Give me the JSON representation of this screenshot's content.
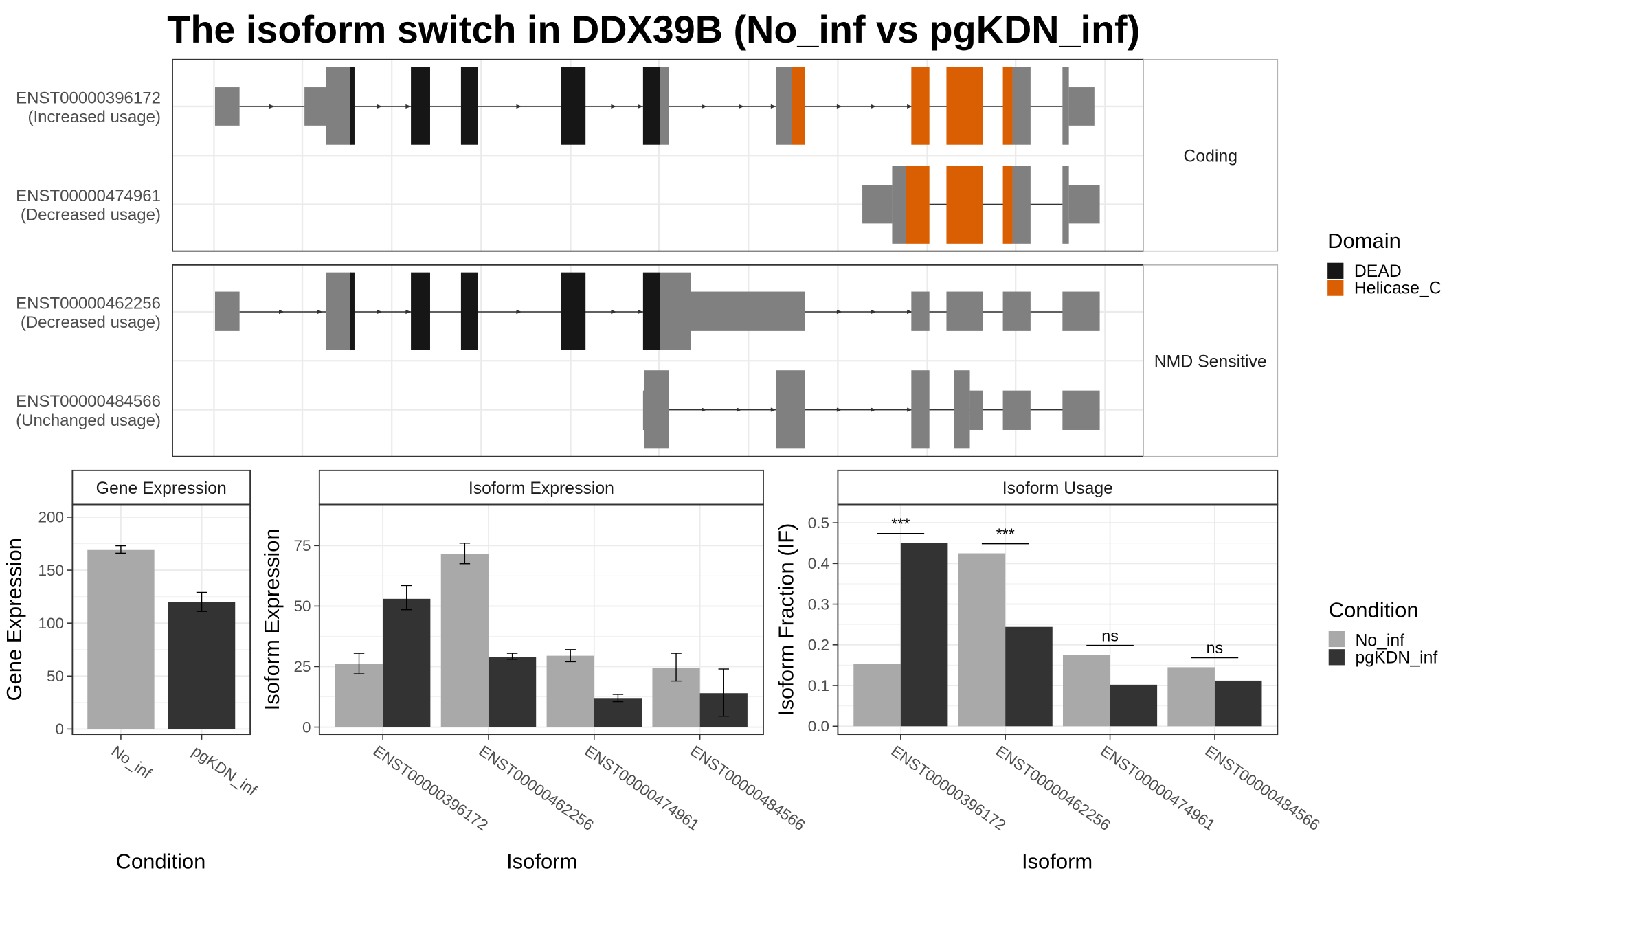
{
  "title": "The isoform switch in DDX39B (No_inf vs pgKDN_inf)",
  "colors": {
    "no_inf": "#a9a9a9",
    "pgkdn_inf": "#333333",
    "dead": "#161616",
    "helicase_c": "#d95f02",
    "exon": "#808080",
    "grid": "#ebebeb",
    "panel_border": "#333333",
    "strip_bg": "#ffffff"
  },
  "structure_panel": {
    "facets": [
      {
        "label": "Coding",
        "transcripts": [
          {
            "id": "ENST00000396172",
            "usage": "(Increased usage)"
          },
          {
            "id": "ENST00000474961",
            "usage": "(Decreased usage)"
          }
        ]
      },
      {
        "label": "NMD Sensitive",
        "transcripts": [
          {
            "id": "ENST00000462256",
            "usage": "(Decreased usage)"
          },
          {
            "id": "ENST00000484566",
            "usage": "(Unchanged usage)"
          }
        ]
      }
    ],
    "legend": {
      "title": "Domain",
      "items": [
        {
          "name": "DEAD",
          "color": "#161616"
        },
        {
          "name": "Helicase_C",
          "color": "#d95f02"
        }
      ]
    }
  },
  "condition_legend": {
    "title": "Condition",
    "items": [
      {
        "name": "No_inf",
        "color": "#a9a9a9"
      },
      {
        "name": "pgKDN_inf",
        "color": "#333333"
      }
    ]
  },
  "chart_data": [
    {
      "type": "bar",
      "title": "Gene Expression",
      "xlabel": "Condition",
      "ylabel": "Gene Expression",
      "categories": [
        "No_inf",
        "pgKDN_inf"
      ],
      "values": [
        169,
        120
      ],
      "error_low": [
        166,
        111
      ],
      "error_high": [
        173,
        129
      ],
      "ylim": [
        -5,
        212
      ],
      "yticks": [
        0,
        50,
        100,
        150,
        200
      ]
    },
    {
      "type": "bar",
      "title": "Isoform Expression",
      "xlabel": "Isoform",
      "ylabel": "Isoform Expression",
      "categories": [
        "ENST00000396172",
        "ENST00000462256",
        "ENST00000474961",
        "ENST00000484566"
      ],
      "series": [
        {
          "name": "No_inf",
          "values": [
            26,
            71.5,
            29.5,
            24.5
          ],
          "error_low": [
            22,
            67.5,
            27,
            19
          ],
          "error_high": [
            30.5,
            76,
            32,
            30.5
          ]
        },
        {
          "name": "pgKDN_inf",
          "values": [
            53,
            29,
            12,
            14
          ],
          "error_low": [
            48.5,
            28,
            10.5,
            4.5
          ],
          "error_high": [
            58.5,
            30.5,
            13.5,
            24
          ]
        }
      ],
      "ylim": [
        -3,
        92
      ],
      "yticks": [
        0,
        25,
        50,
        75
      ]
    },
    {
      "type": "bar",
      "title": "Isoform Usage",
      "xlabel": "Isoform",
      "ylabel": "Isoform Fraction (IF)",
      "categories": [
        "ENST00000396172",
        "ENST00000462256",
        "ENST00000474961",
        "ENST00000484566"
      ],
      "series": [
        {
          "name": "No_inf",
          "values": [
            0.153,
            0.425,
            0.175,
            0.145
          ]
        },
        {
          "name": "pgKDN_inf",
          "values": [
            0.45,
            0.244,
            0.102,
            0.112
          ]
        }
      ],
      "significance": [
        "***",
        "***",
        "ns",
        "ns"
      ],
      "ylim": [
        -0.02,
        0.545
      ],
      "yticks": [
        0.0,
        0.1,
        0.2,
        0.3,
        0.4,
        0.5
      ],
      "ytick_labels": [
        "0.0",
        "0.1",
        "0.2",
        "0.3",
        "0.4",
        "0.5"
      ]
    }
  ]
}
